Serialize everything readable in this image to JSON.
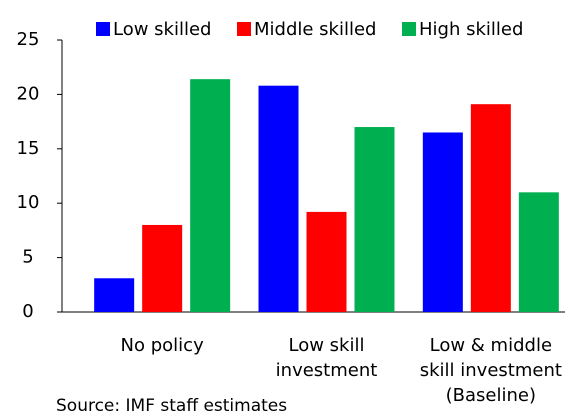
{
  "chart_data": {
    "type": "bar",
    "categories": [
      "No policy",
      "Low skill\ninvestment",
      "Low & middle\nskill investment\n(Baseline)"
    ],
    "series": [
      {
        "name": "Low skilled",
        "color": "#0000ff",
        "values": [
          3.1,
          20.8,
          16.5
        ]
      },
      {
        "name": "Middle skilled",
        "color": "#ff0000",
        "values": [
          8,
          9.2,
          19.1
        ]
      },
      {
        "name": "High skilled",
        "color": "#00b050",
        "values": [
          21.4,
          17,
          11
        ]
      }
    ],
    "ylim": [
      0,
      25
    ],
    "yticks": [
      0,
      5,
      10,
      15,
      20,
      25
    ],
    "grid": false,
    "legend": "top",
    "source": "Source: IMF staff estimates"
  }
}
